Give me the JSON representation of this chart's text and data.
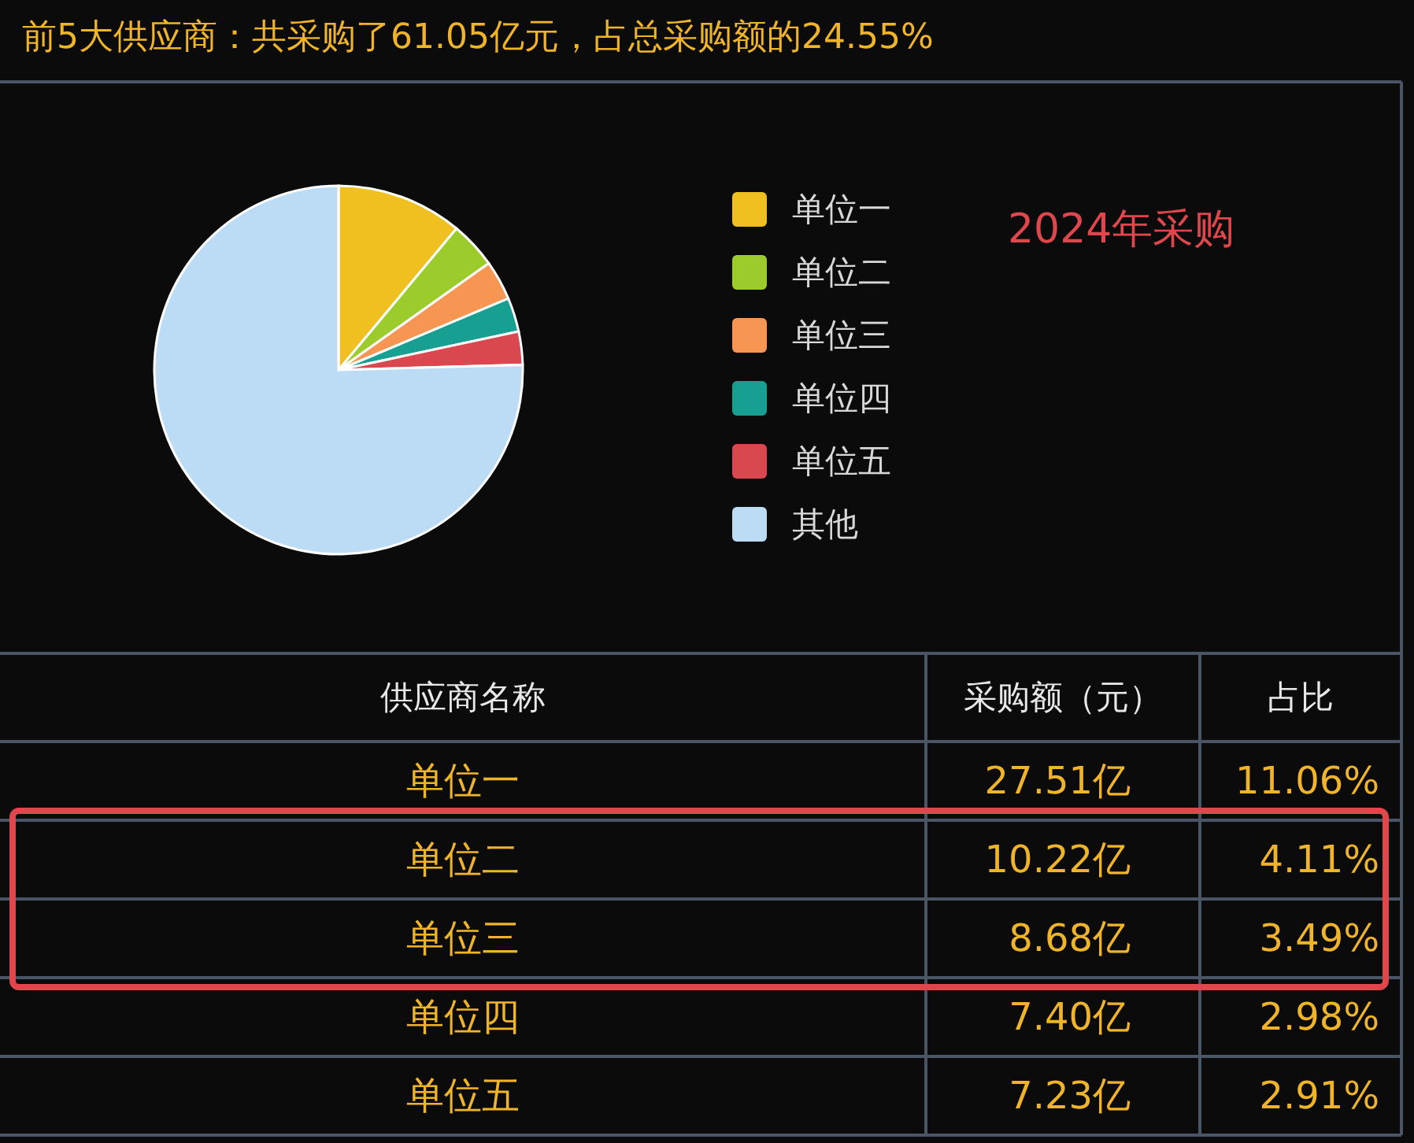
{
  "chart_data": {
    "type": "pie",
    "title": "前5大供应商：共采购了61.05亿元，占总采购额的24.55%",
    "categories": [
      "单位一",
      "单位二",
      "单位三",
      "单位四",
      "单位五",
      "其他"
    ],
    "values": [
      11.06,
      4.11,
      3.49,
      2.98,
      2.91,
      75.45
    ],
    "colors": [
      "#f0c020",
      "#9ccc2c",
      "#f79553",
      "#17a092",
      "#d9484f",
      "#bcdcf5"
    ],
    "legend": "right",
    "annotations": [
      "2024年采购",
      "供应商名称",
      "采购额（元）",
      "占比",
      "27.51亿",
      "10.22亿",
      "8.68亿",
      "7.40亿",
      "7.23亿",
      "11.06%",
      "4.11%",
      "3.49%",
      "2.98%",
      "2.91%"
    ]
  }
}
